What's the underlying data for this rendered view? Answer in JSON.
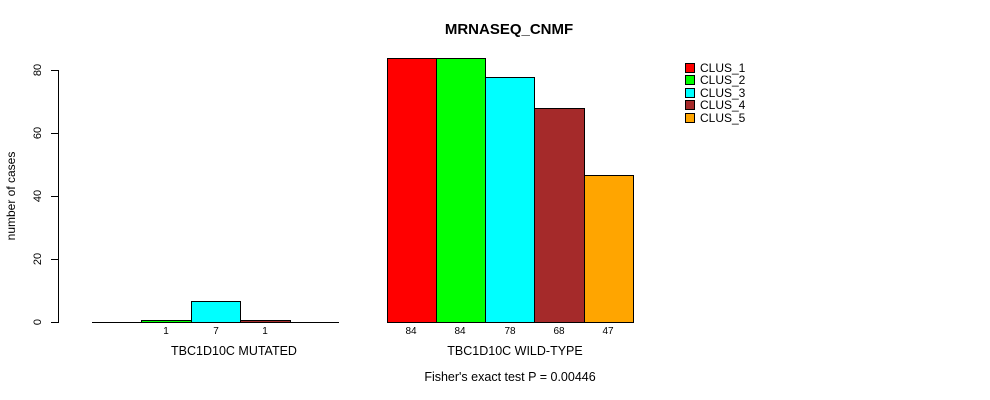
{
  "title": "MRNASEQ_CNMF",
  "y_axis": {
    "label": "number of cases",
    "ticks": [
      "0",
      "20",
      "40",
      "60",
      "80"
    ]
  },
  "footnote": "Fisher's exact test P = 0.00446",
  "legend": {
    "items": [
      {
        "label": "CLUS_1",
        "color": "#FF0000"
      },
      {
        "label": "CLUS_2",
        "color": "#00FF00"
      },
      {
        "label": "CLUS_3",
        "color": "#00FFFF"
      },
      {
        "label": "CLUS_4",
        "color": "#A52A2A"
      },
      {
        "label": "CLUS_5",
        "color": "#FFA500"
      }
    ]
  },
  "groups": [
    {
      "label": "TBC1D10C MUTATED",
      "bars": [
        {
          "cluster": "CLUS_1",
          "color": "#FF0000",
          "value": 0,
          "label": ""
        },
        {
          "cluster": "CLUS_2",
          "color": "#00FF00",
          "value": 1,
          "label": "1"
        },
        {
          "cluster": "CLUS_3",
          "color": "#00FFFF",
          "value": 7,
          "label": "7"
        },
        {
          "cluster": "CLUS_4",
          "color": "#A52A2A",
          "value": 1,
          "label": "1"
        },
        {
          "cluster": "CLUS_5",
          "color": "#FFA500",
          "value": 0,
          "label": ""
        }
      ]
    },
    {
      "label": "TBC1D10C WILD-TYPE",
      "bars": [
        {
          "cluster": "CLUS_1",
          "color": "#FF0000",
          "value": 84,
          "label": "84"
        },
        {
          "cluster": "CLUS_2",
          "color": "#00FF00",
          "value": 84,
          "label": "84"
        },
        {
          "cluster": "CLUS_3",
          "color": "#00FFFF",
          "value": 78,
          "label": "78"
        },
        {
          "cluster": "CLUS_4",
          "color": "#A52A2A",
          "value": 68,
          "label": "68"
        },
        {
          "cluster": "CLUS_5",
          "color": "#FFA500",
          "value": 47,
          "label": "47"
        }
      ]
    }
  ],
  "chart_data": {
    "type": "bar",
    "title": "MRNASEQ_CNMF",
    "xlabel": "",
    "ylabel": "number of cases",
    "ylim": [
      0,
      84
    ],
    "yticks": [
      0,
      20,
      40,
      60,
      80
    ],
    "grid": false,
    "legend_position": "top-right",
    "categories": [
      "TBC1D10C MUTATED",
      "TBC1D10C WILD-TYPE"
    ],
    "series": [
      {
        "name": "CLUS_1",
        "color": "#FF0000",
        "values": [
          0,
          84
        ]
      },
      {
        "name": "CLUS_2",
        "color": "#00FF00",
        "values": [
          1,
          84
        ]
      },
      {
        "name": "CLUS_3",
        "color": "#00FFFF",
        "values": [
          7,
          78
        ]
      },
      {
        "name": "CLUS_4",
        "color": "#A52A2A",
        "values": [
          1,
          68
        ]
      },
      {
        "name": "CLUS_5",
        "color": "#FFA500",
        "values": [
          0,
          47
        ]
      }
    ],
    "annotation": "Fisher's exact test P = 0.00446"
  }
}
